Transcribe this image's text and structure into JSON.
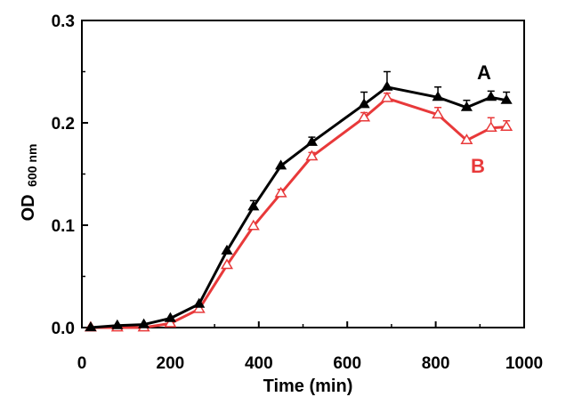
{
  "chart_data": {
    "type": "line",
    "xlabel": "Time (min)",
    "ylabel_main": "OD",
    "ylabel_sub": "600 nm",
    "xlim": [
      0,
      1000
    ],
    "ylim": [
      0,
      0.3
    ],
    "xticks": [
      0,
      200,
      400,
      600,
      800,
      1000
    ],
    "yticks": [
      0.0,
      0.1,
      0.2,
      0.3
    ],
    "xtick_labels": [
      "0",
      "200",
      "400",
      "600",
      "800",
      "1000"
    ],
    "ytick_labels": [
      "0.0",
      "0.1",
      "0.2",
      "0.3"
    ],
    "grid": false,
    "legend": "inline labels near line ends",
    "series": [
      {
        "name": "A",
        "color": "#000000",
        "marker": "filled-triangle",
        "points": [
          {
            "x": 20,
            "y": 0.0,
            "err": 0.0
          },
          {
            "x": 80,
            "y": 0.002,
            "err": 0.0
          },
          {
            "x": 140,
            "y": 0.003,
            "err": 0.0
          },
          {
            "x": 200,
            "y": 0.009,
            "err": 0.0
          },
          {
            "x": 265,
            "y": 0.023,
            "err": 0.0
          },
          {
            "x": 328,
            "y": 0.075,
            "err": 0.0
          },
          {
            "x": 388,
            "y": 0.118,
            "err": 0.006
          },
          {
            "x": 450,
            "y": 0.158,
            "err": 0.0
          },
          {
            "x": 520,
            "y": 0.181,
            "err": 0.005
          },
          {
            "x": 638,
            "y": 0.218,
            "err": 0.012
          },
          {
            "x": 690,
            "y": 0.235,
            "err": 0.015
          },
          {
            "x": 805,
            "y": 0.225,
            "err": 0.01
          },
          {
            "x": 870,
            "y": 0.215,
            "err": 0.007
          },
          {
            "x": 925,
            "y": 0.225,
            "err": 0.006
          },
          {
            "x": 960,
            "y": 0.222,
            "err": 0.008
          }
        ]
      },
      {
        "name": "B",
        "color": "#e8393a",
        "marker": "open-triangle",
        "points": [
          {
            "x": 20,
            "y": 0.0,
            "err": 0.0
          },
          {
            "x": 80,
            "y": 0.0,
            "err": 0.0
          },
          {
            "x": 140,
            "y": 0.0,
            "err": 0.0
          },
          {
            "x": 200,
            "y": 0.004,
            "err": 0.0
          },
          {
            "x": 265,
            "y": 0.018,
            "err": 0.0
          },
          {
            "x": 328,
            "y": 0.061,
            "err": 0.0
          },
          {
            "x": 388,
            "y": 0.099,
            "err": 0.0
          },
          {
            "x": 450,
            "y": 0.131,
            "err": 0.004
          },
          {
            "x": 520,
            "y": 0.167,
            "err": 0.004
          },
          {
            "x": 638,
            "y": 0.205,
            "err": 0.005
          },
          {
            "x": 690,
            "y": 0.224,
            "err": 0.005
          },
          {
            "x": 805,
            "y": 0.208,
            "err": 0.007
          },
          {
            "x": 870,
            "y": 0.183,
            "err": 0.0
          },
          {
            "x": 925,
            "y": 0.195,
            "err": 0.01
          },
          {
            "x": 960,
            "y": 0.196,
            "err": 0.006
          }
        ]
      }
    ]
  }
}
